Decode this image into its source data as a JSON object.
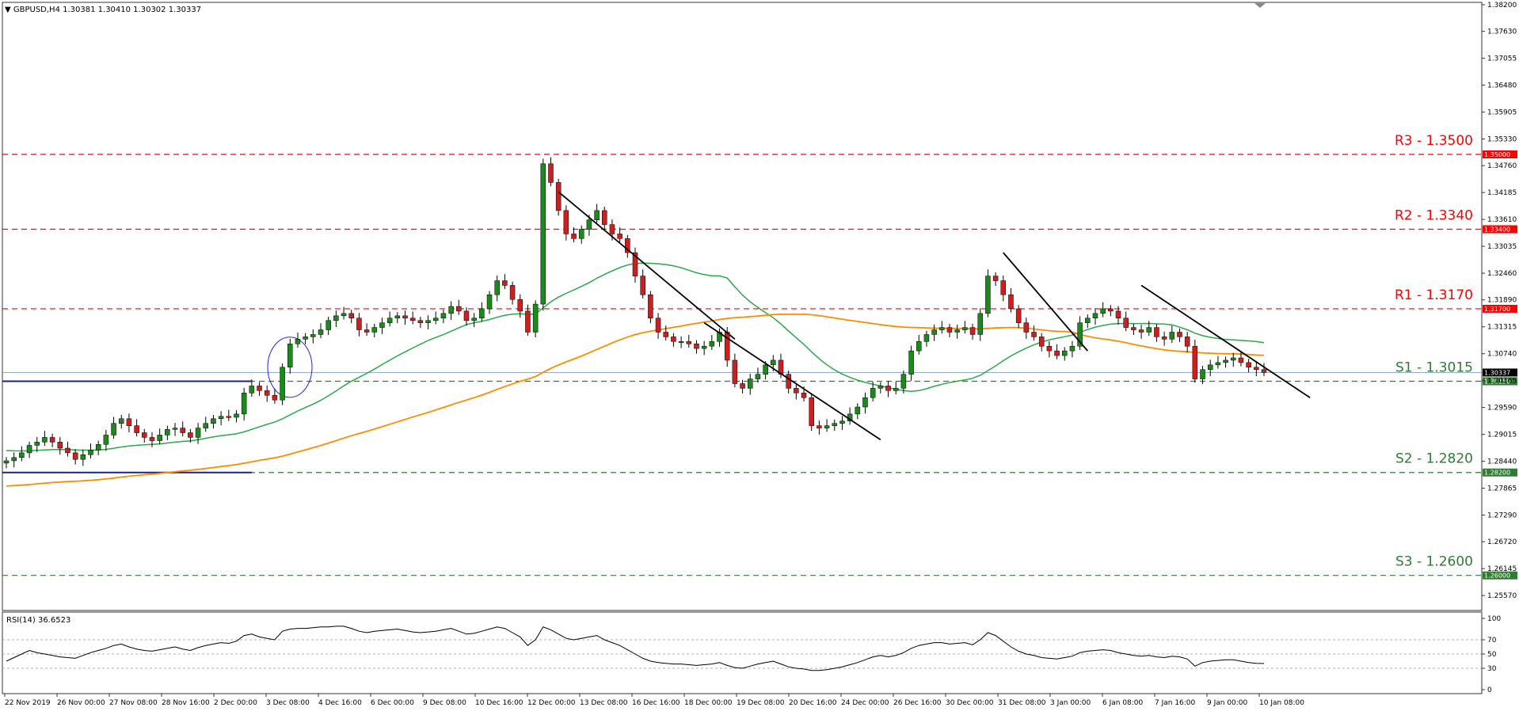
{
  "header": {
    "symbol_line": "GBPUSD,H4  1.30381 1.30410 1.30302 1.30337"
  },
  "rsi_header": {
    "label": "RSI(14) 36.6523"
  },
  "chart_data": [
    {
      "type": "candlestick",
      "symbol": "GBPUSD",
      "timeframe": "H4",
      "ohlc_last": {
        "open": 1.30381,
        "high": 1.3041,
        "low": 1.30302,
        "close": 1.30337
      },
      "ylim": [
        1.2525,
        1.3825
      ],
      "y_ticks": [
        "1.38200",
        "1.37630",
        "1.37055",
        "1.36480",
        "1.35905",
        "1.35330",
        "1.34760",
        "1.34185",
        "1.33610",
        "1.33035",
        "1.32460",
        "1.31890",
        "1.31315",
        "1.30740",
        "1.30165",
        "1.29590",
        "1.29015",
        "1.28440",
        "1.27865",
        "1.27290",
        "1.26720",
        "1.26145",
        "1.25570"
      ],
      "x_ticks": [
        "22 Nov 2019",
        "26 Nov 00:00",
        "27 Nov 08:00",
        "28 Nov 16:00",
        "2 Dec 00:00",
        "3 Dec 08:00",
        "4 Dec 16:00",
        "6 Dec 00:00",
        "9 Dec 08:00",
        "10 Dec 16:00",
        "12 Dec 00:00",
        "13 Dec 08:00",
        "16 Dec 16:00",
        "18 Dec 00:00",
        "19 Dec 08:00",
        "20 Dec 16:00",
        "24 Dec 00:00",
        "26 Dec 16:00",
        "30 Dec 00:00",
        "31 Dec 08:00",
        "3 Jan 00:00",
        "6 Jan 08:00",
        "7 Jan 16:00",
        "9 Jan 00:00",
        "10 Jan 08:00"
      ],
      "levels": [
        {
          "label": "R3 - 1.3500",
          "value": 1.35,
          "tag": "1.35000",
          "color": "#ff0000"
        },
        {
          "label": "R2 - 1.3340",
          "value": 1.334,
          "tag": "1.33400",
          "color": "#ff0000"
        },
        {
          "label": "R1 - 1.3170",
          "value": 1.317,
          "tag": "1.31700",
          "color": "#ff0000"
        },
        {
          "label": "S1 - 1.3015",
          "value": 1.3015,
          "tag": "1.30150",
          "color": "#2e7d32"
        },
        {
          "label": "S2 - 1.2820",
          "value": 1.282,
          "tag": "1.28200",
          "color": "#2e7d32"
        },
        {
          "label": "S3 - 1.2600",
          "value": 1.26,
          "tag": "1.26000",
          "color": "#2e7d32"
        }
      ],
      "current_price_tag": "1.30337",
      "ma_fast_color": "#2aa84a",
      "ma_slow_color": "#ff8c00",
      "bull_color": "#1a8a1a",
      "bear_color": "#cc2020",
      "closes": [
        1.2845,
        1.2852,
        1.2862,
        1.2878,
        1.2885,
        1.2895,
        1.2885,
        1.2872,
        1.2862,
        1.2848,
        1.2858,
        1.2868,
        1.288,
        1.29,
        1.2925,
        1.2935,
        1.292,
        1.2905,
        1.2895,
        1.2888,
        1.29,
        1.2912,
        1.2915,
        1.2905,
        1.2895,
        1.2915,
        1.2925,
        1.2935,
        1.294,
        1.2938,
        1.2945,
        1.299,
        1.3005,
        1.2995,
        1.2985,
        1.2975,
        1.3045,
        1.3095,
        1.3105,
        1.311,
        1.3115,
        1.3125,
        1.3145,
        1.3155,
        1.316,
        1.315,
        1.3125,
        1.312,
        1.313,
        1.314,
        1.315,
        1.3155,
        1.315,
        1.3145,
        1.314,
        1.3145,
        1.315,
        1.316,
        1.3175,
        1.3165,
        1.3145,
        1.315,
        1.317,
        1.32,
        1.323,
        1.322,
        1.319,
        1.3165,
        1.312,
        1.318,
        1.348,
        1.344,
        1.338,
        1.333,
        1.332,
        1.334,
        1.336,
        1.338,
        1.335,
        1.333,
        1.332,
        1.329,
        1.324,
        1.32,
        1.315,
        1.312,
        1.311,
        1.31,
        1.31,
        1.3095,
        1.3085,
        1.309,
        1.31,
        1.312,
        1.306,
        1.301,
        1.3,
        1.302,
        1.303,
        1.305,
        1.306,
        1.303,
        1.3,
        1.299,
        1.298,
        1.292,
        1.2915,
        1.292,
        1.2925,
        1.293,
        1.2945,
        1.296,
        1.298,
        1.3,
        1.3005,
        1.2995,
        1.3,
        1.303,
        1.308,
        1.31,
        1.3115,
        1.3125,
        1.313,
        1.312,
        1.3125,
        1.313,
        1.3115,
        1.316,
        1.324,
        1.323,
        1.32,
        1.317,
        1.314,
        1.312,
        1.311,
        1.309,
        1.308,
        1.307,
        1.308,
        1.309,
        1.314,
        1.315,
        1.316,
        1.317,
        1.3165,
        1.315,
        1.313,
        1.3125,
        1.312,
        1.313,
        1.311,
        1.3105,
        1.312,
        1.311,
        1.309,
        1.302,
        1.304,
        1.305,
        1.3055,
        1.306,
        1.3065,
        1.3055,
        1.3045,
        1.304,
        1.3034
      ]
    },
    {
      "type": "line",
      "name": "RSI(14)",
      "ylim": [
        0,
        100
      ],
      "y_ticks": [
        "100",
        "70",
        "50",
        "30",
        "0"
      ],
      "levels": [
        70,
        50,
        30
      ],
      "values": [
        40,
        45,
        50,
        55,
        52,
        50,
        48,
        46,
        45,
        44,
        48,
        52,
        55,
        58,
        62,
        64,
        60,
        57,
        55,
        54,
        56,
        58,
        60,
        57,
        55,
        59,
        62,
        64,
        66,
        65,
        68,
        76,
        78,
        74,
        72,
        70,
        82,
        85,
        86,
        86,
        87,
        88,
        88,
        89,
        89,
        86,
        82,
        80,
        82,
        83,
        84,
        85,
        83,
        81,
        80,
        81,
        82,
        84,
        86,
        82,
        78,
        79,
        82,
        85,
        88,
        86,
        80,
        74,
        62,
        70,
        88,
        84,
        78,
        72,
        70,
        72,
        74,
        76,
        70,
        66,
        62,
        56,
        50,
        44,
        40,
        38,
        37,
        36,
        36,
        35,
        34,
        35,
        36,
        38,
        34,
        31,
        30,
        33,
        36,
        38,
        40,
        36,
        32,
        30,
        29,
        27,
        27,
        28,
        30,
        32,
        35,
        38,
        42,
        46,
        48,
        46,
        48,
        52,
        58,
        62,
        64,
        66,
        66,
        64,
        65,
        66,
        63,
        70,
        80,
        76,
        68,
        60,
        54,
        50,
        48,
        45,
        44,
        43,
        45,
        47,
        52,
        54,
        55,
        56,
        55,
        52,
        50,
        48,
        47,
        48,
        46,
        45,
        47,
        46,
        43,
        33,
        38,
        40,
        41,
        42,
        42,
        40,
        38,
        37,
        36.65
      ]
    }
  ]
}
